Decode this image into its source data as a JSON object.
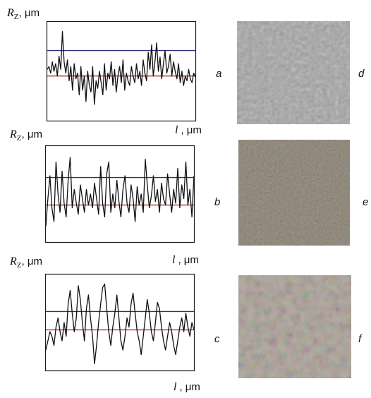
{
  "figure": {
    "ylabel_symbol": "R",
    "ylabel_sub": "Z",
    "ylabel_unit": "μm",
    "xlabel_symbol": "l",
    "xlabel_unit": ", μm",
    "panels": [
      {
        "letter": "a",
        "image_letter": "d"
      },
      {
        "letter": "b",
        "image_letter": "e"
      },
      {
        "letter": "c",
        "image_letter": "f"
      }
    ],
    "colors": {
      "frame": "#1a1a1a",
      "upper_line": "#2e2e7a",
      "mean_line": "#b03030",
      "profile": "#111111"
    }
  },
  "chart_data": [
    {
      "type": "line",
      "title": "",
      "xlabel": "l , μm",
      "ylabel": "RZ, μm",
      "panel": "a",
      "y": [
        0.52,
        0.55,
        0.48,
        0.6,
        0.5,
        0.58,
        0.45,
        0.66,
        0.52,
        0.92,
        0.6,
        0.48,
        0.62,
        0.4,
        0.55,
        0.3,
        0.58,
        0.42,
        0.48,
        0.25,
        0.55,
        0.3,
        0.45,
        0.18,
        0.5,
        0.35,
        0.28,
        0.55,
        0.15,
        0.4,
        0.32,
        0.5,
        0.38,
        0.25,
        0.58,
        0.3,
        0.48,
        0.42,
        0.6,
        0.35,
        0.52,
        0.28,
        0.45,
        0.55,
        0.38,
        0.62,
        0.3,
        0.48,
        0.4,
        0.35,
        0.55,
        0.45,
        0.38,
        0.58,
        0.42,
        0.5,
        0.35,
        0.62,
        0.48,
        0.4,
        0.7,
        0.52,
        0.78,
        0.45,
        0.6,
        0.8,
        0.5,
        0.65,
        0.42,
        0.58,
        0.72,
        0.48,
        0.55,
        0.68,
        0.45,
        0.6,
        0.5,
        0.42,
        0.58,
        0.38,
        0.5,
        0.35,
        0.45,
        0.4,
        0.52,
        0.42,
        0.38,
        0.48,
        0.44
      ],
      "reference_lines": {
        "upper": 0.72,
        "mean": 0.45
      }
    },
    {
      "type": "line",
      "title": "",
      "xlabel": "l , μm",
      "ylabel": "RZ, μm",
      "panel": "b",
      "y": [
        0.15,
        0.45,
        0.7,
        0.35,
        0.2,
        0.85,
        0.5,
        0.3,
        0.75,
        0.4,
        0.25,
        0.65,
        0.9,
        0.35,
        0.55,
        0.4,
        0.28,
        0.6,
        0.45,
        0.3,
        0.55,
        0.38,
        0.5,
        0.35,
        0.62,
        0.45,
        0.28,
        0.8,
        0.4,
        0.25,
        0.72,
        0.85,
        0.3,
        0.5,
        0.35,
        0.65,
        0.42,
        0.25,
        0.55,
        0.7,
        0.4,
        0.3,
        0.6,
        0.45,
        0.2,
        0.58,
        0.38,
        0.5,
        0.3,
        0.88,
        0.6,
        0.35,
        0.48,
        0.7,
        0.42,
        0.55,
        0.3,
        0.62,
        0.45,
        0.38,
        0.72,
        0.5,
        0.3,
        0.55,
        0.4,
        0.78,
        0.35,
        0.6,
        0.45,
        0.85,
        0.38,
        0.55,
        0.25,
        0.7
      ],
      "reference_lines": {
        "upper": 0.68,
        "mean": 0.38
      }
    },
    {
      "type": "line",
      "title": "",
      "xlabel": "l , μm",
      "ylabel": "RZ, μm",
      "panel": "c",
      "y": [
        0.2,
        0.3,
        0.4,
        0.35,
        0.25,
        0.45,
        0.55,
        0.4,
        0.3,
        0.5,
        0.35,
        0.7,
        0.85,
        0.6,
        0.4,
        0.55,
        0.9,
        0.75,
        0.5,
        0.3,
        0.65,
        0.8,
        0.55,
        0.35,
        0.05,
        0.25,
        0.5,
        0.7,
        0.88,
        0.92,
        0.65,
        0.4,
        0.25,
        0.45,
        0.6,
        0.8,
        0.55,
        0.3,
        0.2,
        0.35,
        0.55,
        0.45,
        0.7,
        0.82,
        0.6,
        0.4,
        0.3,
        0.15,
        0.35,
        0.55,
        0.75,
        0.6,
        0.4,
        0.3,
        0.5,
        0.72,
        0.65,
        0.45,
        0.3,
        0.2,
        0.35,
        0.5,
        0.4,
        0.25,
        0.15,
        0.3,
        0.45,
        0.55,
        0.4,
        0.6,
        0.45,
        0.35,
        0.5,
        0.42
      ],
      "reference_lines": {
        "upper": 0.62,
        "mean": 0.42
      }
    }
  ]
}
